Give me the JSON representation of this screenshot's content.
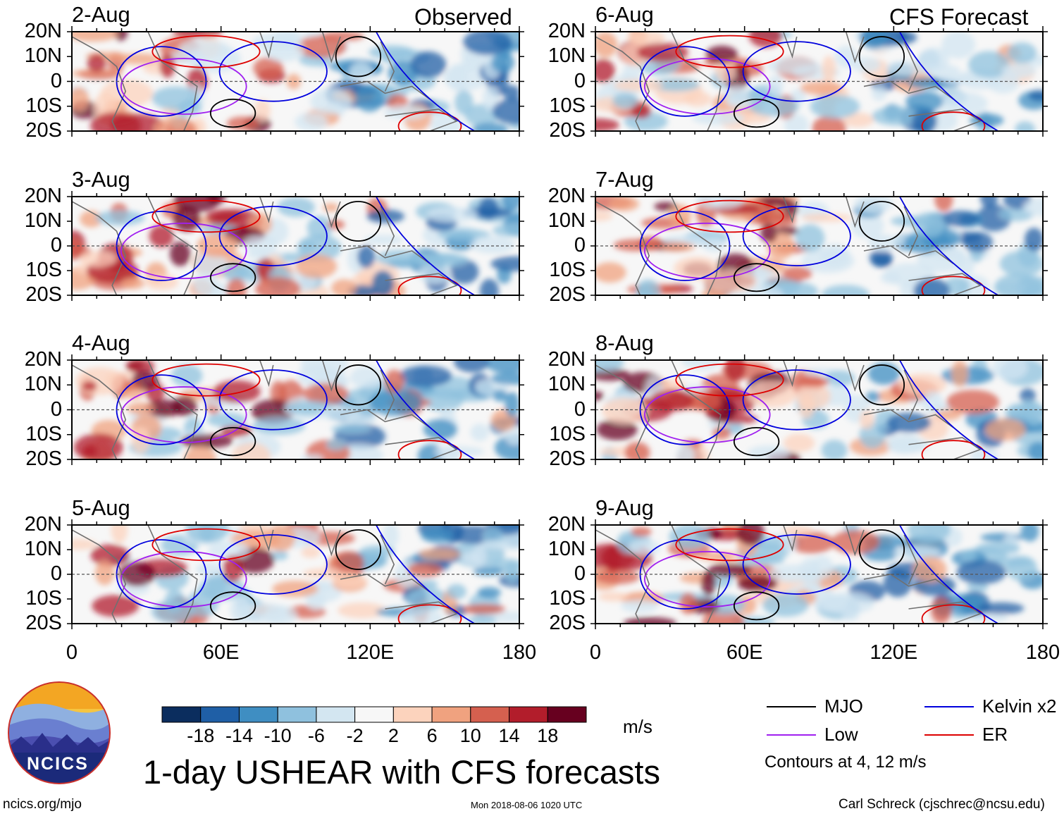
{
  "figure": {
    "title": "1-day USHEAR with CFS forecasts",
    "site": "ncics.org/mjo",
    "timestamp": "Mon 2018-08-06 1020 UTC",
    "author": "Carl Schreck (cjschrec@ncsu.edu)",
    "logo_text": "NCICS"
  },
  "headers": {
    "left": "Observed",
    "right": "CFS Forecast"
  },
  "colorbar": {
    "unit": "m/s",
    "ticks": [
      "-18",
      "-14",
      "-10",
      "-6",
      "-2",
      "2",
      "6",
      "10",
      "14",
      "18"
    ],
    "colors": [
      "#0b2d5e",
      "#1f5fa6",
      "#3f8ec2",
      "#8fc1de",
      "#d3e6f1",
      "#f7f7f7",
      "#fcd3bd",
      "#f0a27f",
      "#d5604f",
      "#b21d2b",
      "#67001f"
    ]
  },
  "legend": {
    "items": [
      {
        "label": "MJO",
        "color": "#000000"
      },
      {
        "label": "Kelvin x2",
        "color": "#0000dd"
      },
      {
        "label": "Low",
        "color": "#a020f0"
      },
      {
        "label": "ER",
        "color": "#dd0000"
      }
    ],
    "note": "Contours at 4, 12 m/s"
  },
  "chart_data": {
    "type": "heatmap",
    "variable": "1-day USHEAR anomaly (m/s)",
    "x_axis": {
      "range": [
        0,
        180
      ],
      "ticks": [
        "0",
        "60E",
        "120E",
        "180"
      ]
    },
    "y_axis": {
      "range": [
        -20,
        20
      ],
      "ticks": [
        "20N",
        "10N",
        "0",
        "10S",
        "20S"
      ]
    },
    "panels": [
      {
        "date": "2-Aug",
        "source": "Observed"
      },
      {
        "date": "3-Aug",
        "source": "Observed"
      },
      {
        "date": "4-Aug",
        "source": "Observed"
      },
      {
        "date": "5-Aug",
        "source": "Observed"
      },
      {
        "date": "6-Aug",
        "source": "CFS Forecast"
      },
      {
        "date": "7-Aug",
        "source": "CFS Forecast"
      },
      {
        "date": "8-Aug",
        "source": "CFS Forecast"
      },
      {
        "date": "9-Aug",
        "source": "CFS Forecast"
      }
    ]
  }
}
